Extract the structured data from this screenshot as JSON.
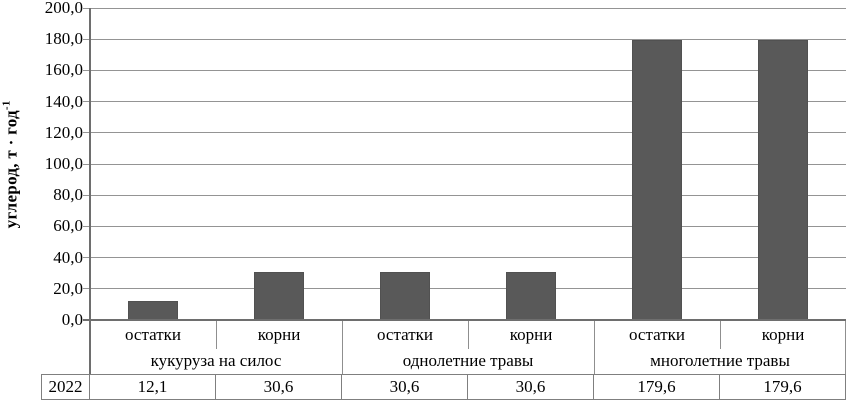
{
  "chart_data": {
    "type": "bar",
    "title": "",
    "ylabel_main": "углерод, т · год",
    "ylabel_sup": "-1",
    "xlabel": "",
    "ylim": [
      0,
      200
    ],
    "ytick_step": 20,
    "ytick_labels": [
      "0,0",
      "20,0",
      "40,0",
      "60,0",
      "80,0",
      "100,0",
      "120,0",
      "140,0",
      "160,0",
      "180,0",
      "200,0"
    ],
    "grid": true,
    "legend_position": "none",
    "bar_color": "#595959",
    "categories": [
      "остатки",
      "корни",
      "остатки",
      "корни",
      "остатки",
      "корни"
    ],
    "values": [
      12.1,
      30.6,
      30.6,
      30.6,
      179.6,
      179.6
    ],
    "groups": [
      {
        "label": "кукуруза на силос",
        "categories": [
          "остатки",
          "корни"
        ],
        "values": [
          12.1,
          30.6
        ]
      },
      {
        "label": "однолетние травы",
        "categories": [
          "остатки",
          "корни"
        ],
        "values": [
          30.6,
          30.6
        ]
      },
      {
        "label": "многолетние травы",
        "categories": [
          "остатки",
          "корни"
        ],
        "values": [
          179.6,
          179.6
        ]
      }
    ],
    "data_table": {
      "row_header": "2022",
      "values": [
        "12,1",
        "30,6",
        "30,6",
        "30,6",
        "179,6",
        "179,6"
      ]
    }
  }
}
